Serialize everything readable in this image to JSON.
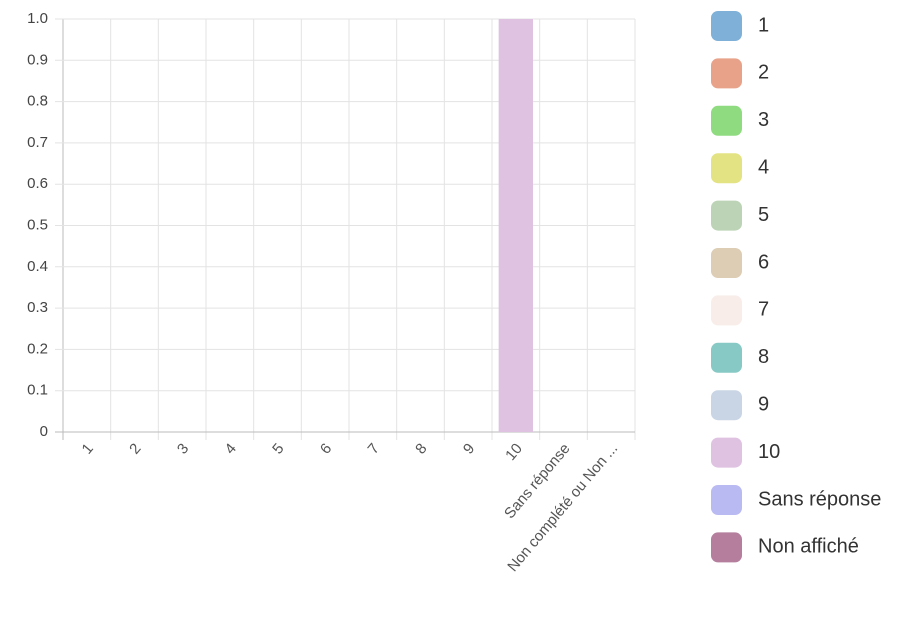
{
  "chart_data": {
    "type": "bar",
    "categories": [
      "1",
      "2",
      "3",
      "4",
      "5",
      "6",
      "7",
      "8",
      "9",
      "10",
      "Sans réponse",
      "Non complété ou Non ..."
    ],
    "values": [
      0,
      0,
      0,
      0,
      0,
      0,
      0,
      0,
      0,
      1,
      0,
      0
    ],
    "ylim": [
      0,
      1
    ],
    "yticks": [
      0,
      0.1,
      0.2,
      0.3,
      0.4,
      0.5,
      0.6,
      0.7,
      0.8,
      0.9,
      {
        "value": 1,
        "label": "1.0"
      }
    ],
    "grid": true,
    "legend_position": "right",
    "legend": [
      {
        "name": "1",
        "color": "#7fb0d8"
      },
      {
        "name": "2",
        "color": "#e8a28a"
      },
      {
        "name": "3",
        "color": "#8fdc80"
      },
      {
        "name": "4",
        "color": "#e3e384"
      },
      {
        "name": "5",
        "color": "#bcd3b5"
      },
      {
        "name": "6",
        "color": "#dccdb4"
      },
      {
        "name": "7",
        "color": "#f8ede9"
      },
      {
        "name": "8",
        "color": "#87c9c4"
      },
      {
        "name": "9",
        "color": "#c9d5e4"
      },
      {
        "name": "10",
        "color": "#dfc1e2"
      },
      {
        "name": "Sans réponse",
        "color": "#babaf2"
      },
      {
        "name": "Non affiché",
        "color": "#b47e9c"
      }
    ]
  }
}
